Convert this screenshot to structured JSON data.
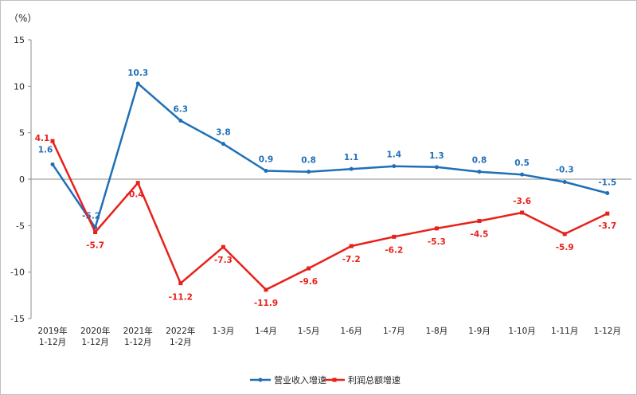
{
  "chart_data": {
    "type": "line",
    "unit_label": "（%）",
    "categories": [
      [
        "2019年",
        "1-12月"
      ],
      [
        "2020年",
        "1-12月"
      ],
      [
        "2021年",
        "1-12月"
      ],
      [
        "2022年",
        "1-2月"
      ],
      [
        "1-3月"
      ],
      [
        "1-4月"
      ],
      [
        "1-5月"
      ],
      [
        "1-6月"
      ],
      [
        "1-7月"
      ],
      [
        "1-8月"
      ],
      [
        "1-9月"
      ],
      [
        "1-10月"
      ],
      [
        "1-11月"
      ],
      [
        "1-12月"
      ]
    ],
    "ylim": [
      -15,
      15
    ],
    "yticks": [
      -15,
      -10,
      -5,
      0,
      5,
      10,
      15
    ],
    "legend_position": "bottom",
    "series": [
      {
        "name": "营业收入增速",
        "color": "#1f6fb7",
        "values": [
          1.6,
          -5.2,
          10.3,
          6.3,
          3.8,
          0.9,
          0.8,
          1.1,
          1.4,
          1.3,
          0.8,
          0.5,
          -0.3,
          -1.5
        ],
        "labels": [
          "1.6",
          "-5.2",
          "10.3",
          "6.3",
          "3.8",
          "0.9",
          "0.8",
          "1.1",
          "1.4",
          "1.3",
          "0.8",
          "0.5",
          "-0.3",
          "-1.5"
        ]
      },
      {
        "name": "利润总额增速",
        "color": "#e8201a",
        "values": [
          4.1,
          -5.7,
          -0.4,
          -11.2,
          -7.3,
          -11.9,
          -9.6,
          -7.2,
          -6.2,
          -5.3,
          -4.5,
          -3.6,
          -5.9,
          -3.7
        ],
        "labels": [
          "4.1",
          "-5.7",
          "-0.4",
          "-11.2",
          "-7.3",
          "-11.9",
          "-9.6",
          "-7.2",
          "-6.2",
          "-5.3",
          "-4.5",
          "-3.6",
          "-5.9",
          "-3.7"
        ]
      }
    ]
  }
}
